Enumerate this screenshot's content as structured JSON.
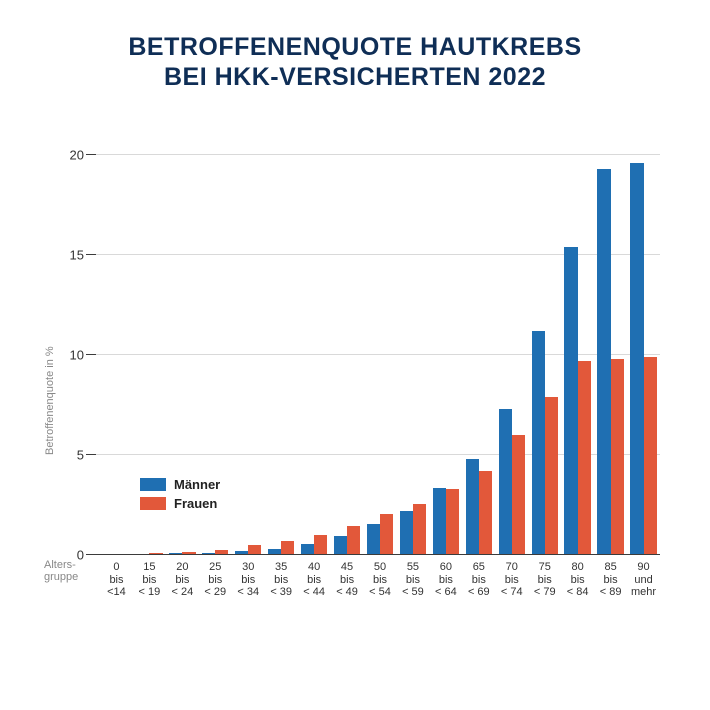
{
  "title": {
    "line1": "BETROFFENENQUOTE HAUTKREBS",
    "line2": "BEI HKK-VERSICHERTEN 2022",
    "color": "#0f2e56",
    "fontsize": 25
  },
  "chart": {
    "type": "bar",
    "background_color": "#ffffff",
    "grid_color": "#d9d9d9",
    "axis_color": "#3b3b3b",
    "ylabel": "Betroffenenquote in %",
    "ylabel_color": "#888888",
    "ylabel_fontsize": 11,
    "ylim": [
      0,
      20
    ],
    "ytick_step": 5,
    "category_axis_title": {
      "line1": "Alters-",
      "line2": "gruppe"
    },
    "categories": [
      {
        "l1": "0",
        "l2": "bis",
        "l3": "<14"
      },
      {
        "l1": "15",
        "l2": "bis",
        "l3": "< 19"
      },
      {
        "l1": "20",
        "l2": "bis",
        "l3": "< 24"
      },
      {
        "l1": "25",
        "l2": "bis",
        "l3": "< 29"
      },
      {
        "l1": "30",
        "l2": "bis",
        "l3": "< 34"
      },
      {
        "l1": "35",
        "l2": "bis",
        "l3": "< 39"
      },
      {
        "l1": "40",
        "l2": "bis",
        "l3": "< 44"
      },
      {
        "l1": "45",
        "l2": "bis",
        "l3": "< 49"
      },
      {
        "l1": "50",
        "l2": "bis",
        "l3": "< 54"
      },
      {
        "l1": "55",
        "l2": "bis",
        "l3": "< 59"
      },
      {
        "l1": "60",
        "l2": "bis",
        "l3": "< 64"
      },
      {
        "l1": "65",
        "l2": "bis",
        "l3": "< 69"
      },
      {
        "l1": "70",
        "l2": "bis",
        "l3": "< 74"
      },
      {
        "l1": "75",
        "l2": "bis",
        "l3": "< 79"
      },
      {
        "l1": "80",
        "l2": "bis",
        "l3": "< 84"
      },
      {
        "l1": "85",
        "l2": "bis",
        "l3": "< 89"
      },
      {
        "l1": "90",
        "l2": "und",
        "l3": "mehr"
      }
    ],
    "series": [
      {
        "name": "Männer",
        "color": "#1f6fb2",
        "values": [
          0.05,
          0.05,
          0.08,
          0.1,
          0.2,
          0.3,
          0.55,
          0.95,
          1.55,
          2.2,
          3.35,
          4.8,
          7.3,
          11.2,
          15.4,
          19.3,
          19.6
        ]
      },
      {
        "name": "Frauen",
        "color": "#e2583a",
        "values": [
          0.05,
          0.1,
          0.15,
          0.25,
          0.5,
          0.7,
          1.0,
          1.45,
          2.05,
          2.55,
          3.3,
          4.2,
          6.0,
          7.9,
          9.7,
          9.8,
          9.9
        ]
      }
    ],
    "bar_width_ratio": 0.4,
    "legend": {
      "position": "inside-left",
      "label_fontsize": 13,
      "label_color": "#222222"
    },
    "tick_label_fontsize": 13,
    "xlabel_fontsize": 11
  }
}
